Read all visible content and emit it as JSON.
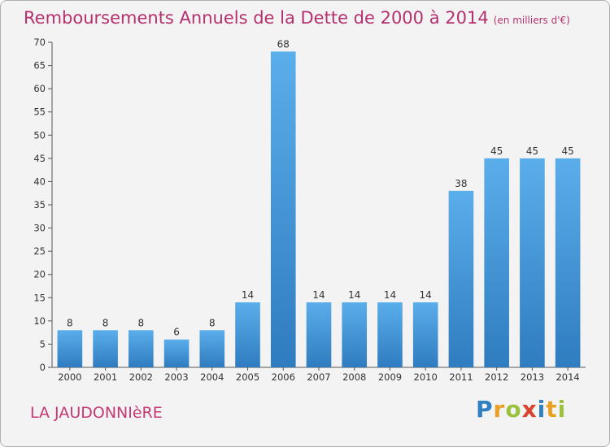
{
  "header": {
    "title": "Remboursements Annuels de la Dette de 2000 à 2014",
    "subtitle": "(en milliers d'€)"
  },
  "commune": "LA JAUDONNIèRE",
  "logo": {
    "text": "Proxiti",
    "letters": [
      {
        "ch": "P",
        "color": "#2f7fc1"
      },
      {
        "ch": "r",
        "color": "#e8a125"
      },
      {
        "ch": "o",
        "color": "#9ac23c"
      },
      {
        "ch": "x",
        "color": "#d9432f"
      },
      {
        "ch": "i",
        "color": "#2f7fc1"
      },
      {
        "ch": "t",
        "color": "#e8a125"
      },
      {
        "ch": "i",
        "color": "#9ac23c"
      }
    ]
  },
  "chart_data": {
    "type": "bar",
    "categories": [
      "2000",
      "2001",
      "2002",
      "2003",
      "2004",
      "2005",
      "2006",
      "2007",
      "2008",
      "2009",
      "2010",
      "2011",
      "2012",
      "2013",
      "2014"
    ],
    "values": [
      8,
      8,
      8,
      6,
      8,
      14,
      68,
      14,
      14,
      14,
      14,
      38,
      45,
      45,
      45
    ],
    "ylim": [
      0,
      70
    ],
    "yticks": [
      0,
      5,
      10,
      15,
      20,
      25,
      30,
      35,
      40,
      45,
      50,
      55,
      60,
      65,
      70
    ],
    "grid": false,
    "bar_color": "#4a9ee0"
  }
}
